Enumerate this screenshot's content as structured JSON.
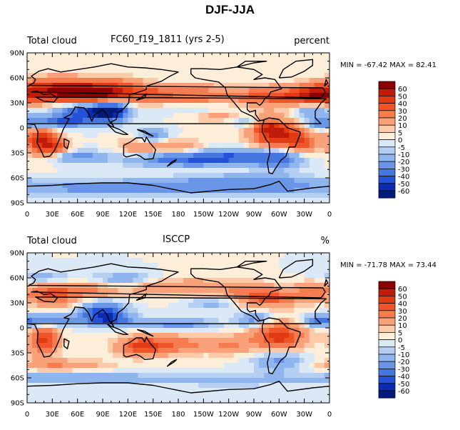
{
  "figure_title": "DJF-JJA",
  "chart_data": [
    {
      "type": "heatmap",
      "title": "FC60_f19_1811 (yrs 2-5)",
      "left_label": "Total cloud",
      "units_label": "percent",
      "min_label": "MIN = ",
      "min_value": "-67.42",
      "max_label": "MAX = ",
      "max_value": "82.41",
      "x_ticks": [
        "0",
        "30E",
        "60E",
        "90E",
        "120E",
        "150E",
        "180",
        "150W",
        "120W",
        "90W",
        "60W",
        "30W",
        "0"
      ],
      "y_ticks": [
        "90N",
        "60N",
        "30N",
        "0",
        "30S",
        "60S",
        "90S"
      ],
      "xlim": [
        0,
        360
      ],
      "ylim": [
        -90,
        90
      ],
      "colorbar_levels": [
        "60",
        "50",
        "40",
        "30",
        "20",
        "10",
        "5",
        "0",
        "-5",
        "-10",
        "-20",
        "-30",
        "-40",
        "-50",
        "-60"
      ],
      "colorbar_colors": [
        "#8b0000",
        "#c01b0b",
        "#e03b12",
        "#f0552a",
        "#f57c50",
        "#f9a27a",
        "#fcc9a9",
        "#fdeed9",
        "#dbe9f7",
        "#b4cff2",
        "#8fb5ee",
        "#6a96e8",
        "#4576e0",
        "#2352d8",
        "#0b2bb0",
        "#001b7a"
      ],
      "data_source": "The field is drawn approximately; cell values are not printed in the original figure."
    },
    {
      "type": "heatmap",
      "title": "ISCCP",
      "left_label": "Total cloud",
      "units_label": "%",
      "min_label": "MIN = ",
      "min_value": "-71.78",
      "max_label": "MAX = ",
      "max_value": "73.44",
      "x_ticks": [
        "0",
        "30E",
        "60E",
        "90E",
        "120E",
        "150E",
        "180",
        "150W",
        "120W",
        "90W",
        "60W",
        "30W",
        "0"
      ],
      "y_ticks": [
        "90N",
        "60N",
        "30N",
        "0",
        "30S",
        "60S",
        "90S"
      ],
      "xlim": [
        0,
        360
      ],
      "ylim": [
        -90,
        90
      ],
      "colorbar_levels": [
        "60",
        "50",
        "40",
        "30",
        "20",
        "10",
        "5",
        "0",
        "-5",
        "-10",
        "-20",
        "-30",
        "-40",
        "-50",
        "-60"
      ],
      "colorbar_colors": [
        "#8b0000",
        "#c01b0b",
        "#e03b12",
        "#f0552a",
        "#f57c50",
        "#f9a27a",
        "#fcc9a9",
        "#fdeed9",
        "#dbe9f7",
        "#b4cff2",
        "#8fb5ee",
        "#6a96e8",
        "#4576e0",
        "#2352d8",
        "#0b2bb0",
        "#001b7a"
      ]
    }
  ]
}
